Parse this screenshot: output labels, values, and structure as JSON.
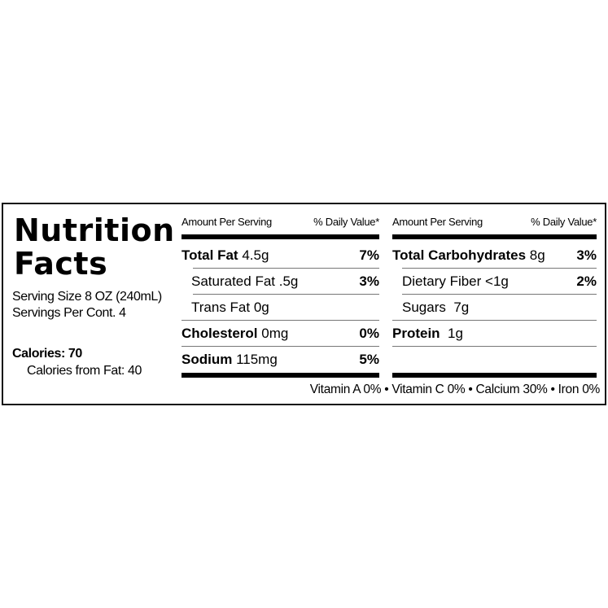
{
  "title": {
    "line1": "Nutrition",
    "line2": "Facts"
  },
  "serving_size": "Serving Size 8 OZ (240mL)",
  "servings_per_container": "Servings Per Cont. 4",
  "calories": "Calories: 70",
  "calories_from_fat": "Calories from Fat: 40",
  "left_table": {
    "header_amount": "Amount Per Serving",
    "header_dv": "% Daily Value*",
    "rows": [
      {
        "name": "Total Fat",
        "amount": "4.5g",
        "dv": "7%",
        "bold": true
      },
      {
        "name": "Saturated Fat",
        "amount": ".5g",
        "dv": "3%",
        "bold": false
      },
      {
        "name": "Trans Fat",
        "amount": "0g",
        "dv": "",
        "bold": false
      },
      {
        "name": "Cholesterol",
        "amount": "0mg",
        "dv": "0%",
        "bold": true
      },
      {
        "name": "Sodium",
        "amount": "115mg",
        "dv": "5%",
        "bold": true
      }
    ]
  },
  "right_table": {
    "header_amount": "Amount Per Serving",
    "header_dv": "% Daily Value*",
    "rows": [
      {
        "name": "Total Carbohydrates",
        "amount": "8g",
        "dv": "3%",
        "bold": true
      },
      {
        "name": "Dietary Fiber",
        "amount": "<1g",
        "dv": "2%",
        "bold": false
      },
      {
        "name": "Sugars",
        "amount": "7g",
        "dv": "",
        "bold": false
      },
      {
        "name": "Protein",
        "amount": "1g",
        "dv": "",
        "bold": true
      }
    ]
  },
  "vitamins": "Vitamin A 0% • Vitamin C 0% • Calcium 30% • Iron 0%"
}
